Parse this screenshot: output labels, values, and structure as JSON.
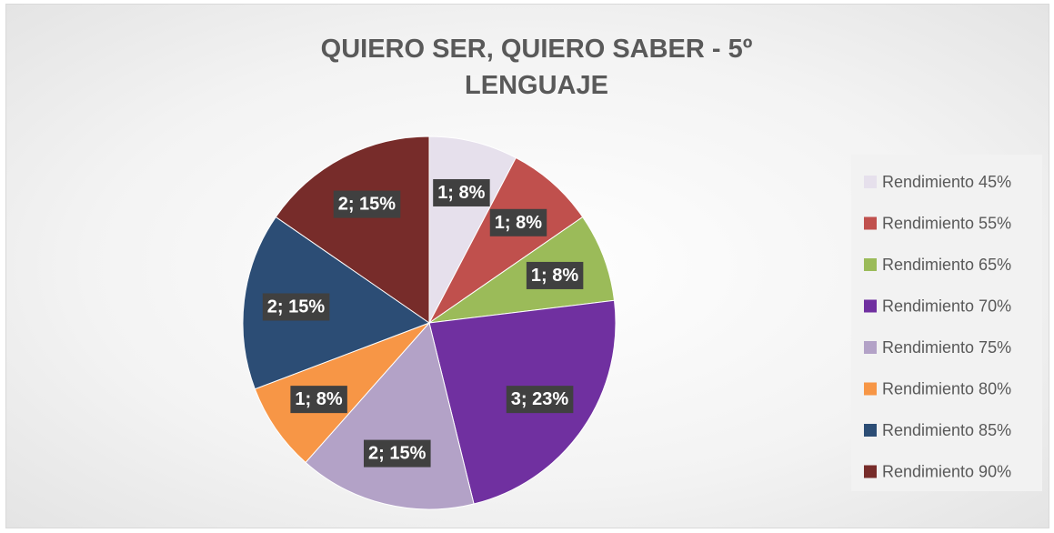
{
  "chart_data": {
    "type": "pie",
    "title": "QUIERO SER, QUIERO SABER - 5º LENGUAJE",
    "categories": [
      "Rendimiento 45%",
      "Rendimiento 55%",
      "Rendimiento 65%",
      "Rendimiento 70%",
      "Rendimiento 75%",
      "Rendimiento 80%",
      "Rendimiento 85%",
      "Rendimiento 90%"
    ],
    "values": [
      1,
      1,
      1,
      3,
      2,
      1,
      2,
      2
    ],
    "value_labels": [
      "1; 8%",
      "1; 8%",
      "1; 8%",
      "3; 23%",
      "2; 15%",
      "1; 8%",
      "2; 15%",
      "2; 15%"
    ],
    "colors": [
      "#e6e0ec",
      "#c0504d",
      "#9bbb59",
      "#7030a0",
      "#b3a2c7",
      "#f79646",
      "#2c4d75",
      "#772c2a"
    ],
    "legend": "right"
  }
}
